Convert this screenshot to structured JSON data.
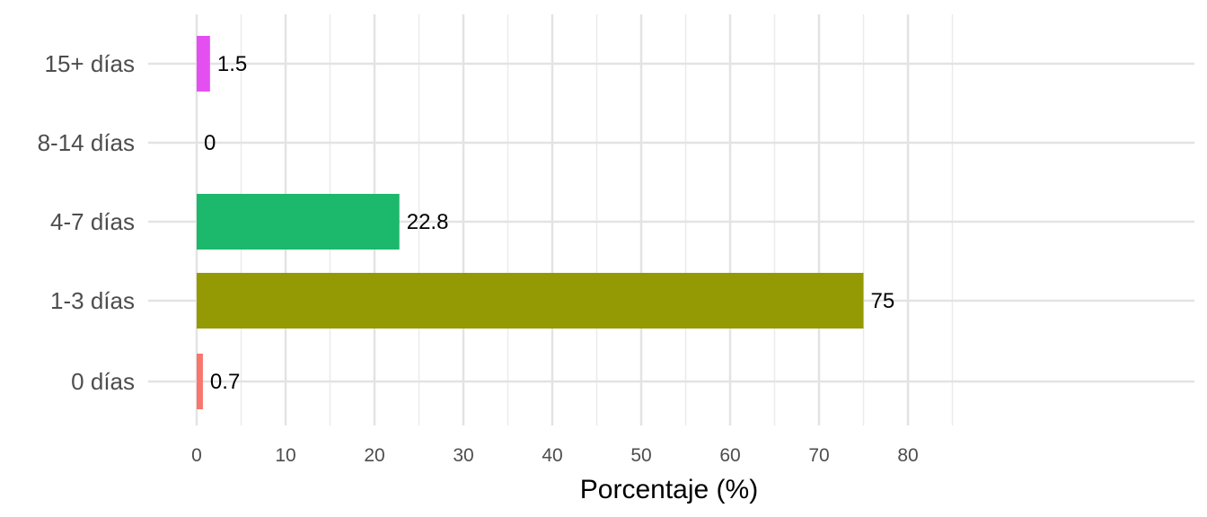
{
  "chart_data": {
    "type": "bar",
    "orientation": "horizontal",
    "categories": [
      "0 días",
      "1-3 días",
      "4-7 días",
      "8-14 días",
      "15+ días"
    ],
    "values": [
      0.7,
      75,
      22.8,
      0,
      1.5
    ],
    "value_labels": [
      "0.7",
      "75",
      "22.8",
      "0",
      "1.5"
    ],
    "colors": [
      "#F8766D",
      "#939A04",
      "#1CB86B",
      "#19AEF0",
      "#E44FF2"
    ],
    "xlabel": "Porcentaje (%)",
    "xlim": [
      0,
      87.5
    ],
    "x_ticks": [
      0,
      10,
      20,
      30,
      40,
      50,
      60,
      70,
      80
    ],
    "x_tick_labels": [
      "0",
      "10",
      "20",
      "30",
      "40",
      "50",
      "60",
      "70",
      "80"
    ],
    "grid": true,
    "legend": "none"
  }
}
